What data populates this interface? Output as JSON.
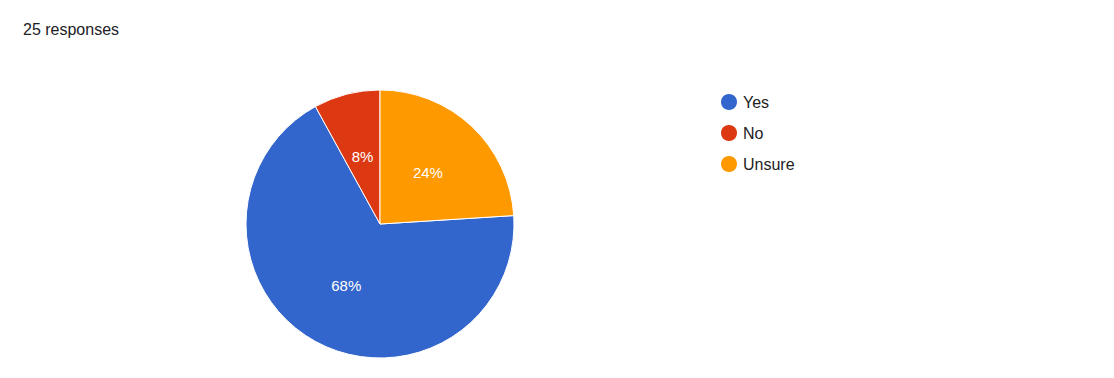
{
  "chart_data": {
    "type": "pie",
    "title": "25 responses",
    "categories": [
      "Yes",
      "No",
      "Unsure"
    ],
    "values": [
      68,
      8,
      24
    ],
    "value_labels": [
      "68%",
      "8%",
      "24%"
    ],
    "colors": [
      "#3366cc",
      "#dc3912",
      "#ff9900"
    ],
    "data_labels": true,
    "legend": "right"
  }
}
